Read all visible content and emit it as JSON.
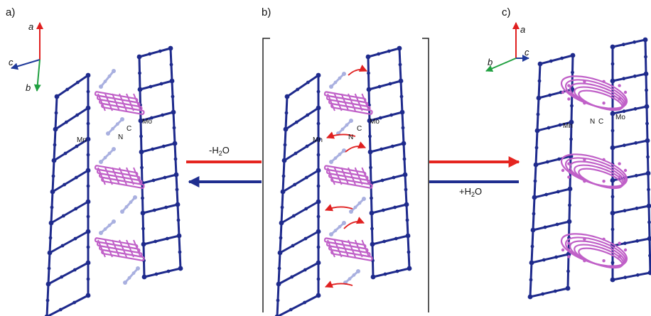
{
  "panels": [
    {
      "label": "a)",
      "axes": [
        {
          "label": "a",
          "color": "#e02020"
        },
        {
          "label": "c",
          "color": "#203a9a"
        },
        {
          "label": "b",
          "color": "#20a040"
        }
      ],
      "atom_labels": {
        "metal1": "Mn",
        "n": "N",
        "c": "C",
        "metal2": "Mo"
      }
    },
    {
      "label": "b)",
      "atom_labels": {
        "metal1": "Mn",
        "n": "N",
        "c": "C",
        "metal2": "Mo"
      }
    },
    {
      "label": "c)",
      "axes": [
        {
          "label": "a",
          "color": "#e02020"
        },
        {
          "label": "c",
          "color": "#203a9a"
        },
        {
          "label": "b",
          "color": "#20a040"
        }
      ],
      "atom_labels": {
        "metal1": "Mn",
        "n": "N",
        "c": "C",
        "metal2": "Mo"
      }
    }
  ],
  "arrows": {
    "dehydration": {
      "prefix": "-H",
      "sub": "2",
      "suffix": "O",
      "color": "#e52520"
    },
    "hydration": {
      "prefix": "+H",
      "sub": "2",
      "suffix": "O",
      "color": "#1f2e8f"
    }
  },
  "colors": {
    "framework": "#1e2a8c",
    "ligand": "#c060c8",
    "cn_group": "#a9b0e0",
    "shift_arrow": "#e02020"
  }
}
